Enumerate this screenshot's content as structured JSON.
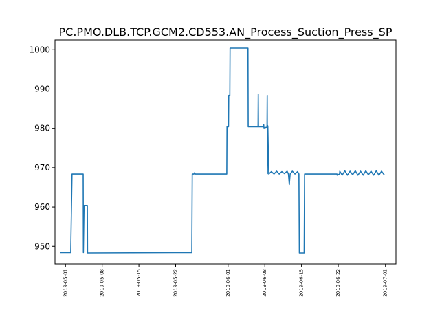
{
  "chart_data": {
    "type": "line",
    "title": "PC.PMO.DLB.TCP.GCM2.CD553.AN_Process_Suction_Press_SP",
    "xlabel": "",
    "ylabel": "",
    "x_ticks": [
      "2019-05-01",
      "2019-05-08",
      "2019-05-15",
      "2019-05-22",
      "2019-06-01",
      "2019-06-08",
      "2019-06-15",
      "2019-06-22",
      "2019-07-01"
    ],
    "y_ticks": [
      950,
      960,
      970,
      980,
      990,
      1000
    ],
    "xlim": [
      "2019-04-29",
      "2019-07-03"
    ],
    "ylim": [
      945.5,
      1002.5
    ],
    "grid": false,
    "legend": "none",
    "series": [
      {
        "name": "",
        "color": "#1f77b4",
        "points": [
          [
            "2019-04-30 00:00",
            948.4
          ],
          [
            "2019-05-02 00:00",
            948.4
          ],
          [
            "2019-05-02 06:00",
            968.4
          ],
          [
            "2019-05-04 09:00",
            968.4
          ],
          [
            "2019-05-04 10:00",
            948.4
          ],
          [
            "2019-05-04 13:00",
            960.4
          ],
          [
            "2019-05-05 04:00",
            960.4
          ],
          [
            "2019-05-05 05:00",
            948.3
          ],
          [
            "2019-05-25 02:00",
            948.4
          ],
          [
            "2019-05-25 04:00",
            968.4
          ],
          [
            "2019-05-25 12:00",
            968.4
          ],
          [
            "2019-05-25 14:00",
            968.7
          ],
          [
            "2019-05-25 18:00",
            968.4
          ],
          [
            "2019-05-31 18:00",
            968.4
          ],
          [
            "2019-05-31 19:00",
            980.4
          ],
          [
            "2019-06-01 02:00",
            980.4
          ],
          [
            "2019-06-01 03:00",
            988.4
          ],
          [
            "2019-06-01 08:00",
            988.4
          ],
          [
            "2019-06-01 09:00",
            1000.4
          ],
          [
            "2019-06-04 19:00",
            1000.4
          ],
          [
            "2019-06-04 20:00",
            980.4
          ],
          [
            "2019-06-06 17:00",
            980.4
          ],
          [
            "2019-06-06 18:00",
            988.7
          ],
          [
            "2019-06-06 19:00",
            980.4
          ],
          [
            "2019-06-07 18:00",
            980.4
          ],
          [
            "2019-06-07 19:00",
            980.9
          ],
          [
            "2019-06-07 20:00",
            980.1
          ],
          [
            "2019-06-08 10:00",
            980.3
          ],
          [
            "2019-06-08 11:00",
            988.4
          ],
          [
            "2019-06-08 12:00",
            968.5
          ],
          [
            "2019-06-08 13:00",
            980.7
          ],
          [
            "2019-06-08 14:00",
            980.4
          ],
          [
            "2019-06-08 18:00",
            968.4
          ],
          [
            "2019-06-09 06:00",
            969.0
          ],
          [
            "2019-06-09 18:00",
            968.4
          ],
          [
            "2019-06-10 06:00",
            969.1
          ],
          [
            "2019-06-10 18:00",
            968.4
          ],
          [
            "2019-06-11 06:00",
            969.0
          ],
          [
            "2019-06-11 18:00",
            968.5
          ],
          [
            "2019-06-12 06:00",
            969.1
          ],
          [
            "2019-06-12 12:00",
            968.4
          ],
          [
            "2019-06-12 16:00",
            965.7
          ],
          [
            "2019-06-12 20:00",
            968.4
          ],
          [
            "2019-06-13 06:00",
            969.1
          ],
          [
            "2019-06-13 18:00",
            968.4
          ],
          [
            "2019-06-14 06:00",
            969.0
          ],
          [
            "2019-06-14 12:00",
            968.4
          ],
          [
            "2019-06-14 14:00",
            948.3
          ],
          [
            "2019-06-15 12:00",
            948.3
          ],
          [
            "2019-06-15 14:00",
            968.4
          ],
          [
            "2019-06-21 18:00",
            968.4
          ],
          [
            "2019-06-21 19:00",
            968.1
          ],
          [
            "2019-06-22 06:00",
            968.4
          ],
          [
            "2019-06-22 07:00",
            969.1
          ],
          [
            "2019-06-22 18:00",
            968.1
          ],
          [
            "2019-06-23 06:00",
            969.2
          ],
          [
            "2019-06-23 18:00",
            968.1
          ],
          [
            "2019-06-24 06:00",
            969.1
          ],
          [
            "2019-06-24 18:00",
            968.2
          ],
          [
            "2019-06-25 06:00",
            969.2
          ],
          [
            "2019-06-25 18:00",
            968.1
          ],
          [
            "2019-06-26 06:00",
            969.1
          ],
          [
            "2019-06-26 18:00",
            968.1
          ],
          [
            "2019-06-27 06:00",
            969.2
          ],
          [
            "2019-06-27 18:00",
            968.2
          ],
          [
            "2019-06-28 06:00",
            969.1
          ],
          [
            "2019-06-28 18:00",
            968.1
          ],
          [
            "2019-06-29 06:00",
            969.2
          ],
          [
            "2019-06-29 18:00",
            968.1
          ],
          [
            "2019-06-30 06:00",
            969.1
          ],
          [
            "2019-06-30 18:00",
            968.2
          ],
          [
            "2019-06-30 20:00",
            968.3
          ]
        ]
      }
    ]
  }
}
